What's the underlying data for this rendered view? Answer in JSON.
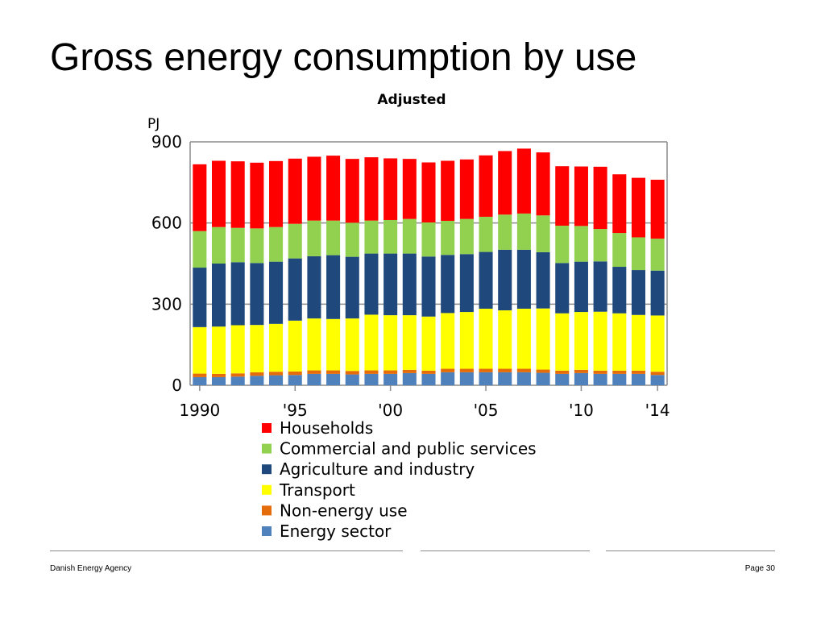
{
  "slide": {
    "title": "Gross energy consumption by use",
    "footer_left": "Danish Energy Agency",
    "footer_right": "Page 30"
  },
  "chart_data": {
    "type": "bar",
    "stacked": true,
    "subtitle": "Adjusted",
    "unit_label": "PJ",
    "ylim": [
      0,
      900
    ],
    "yticks": [
      "0",
      "300",
      "600",
      "900"
    ],
    "y_tick_values": [
      0,
      300,
      600,
      900
    ],
    "grid": true,
    "legend_position": "bottom",
    "categories": [
      1990,
      1991,
      1992,
      1993,
      1994,
      1995,
      1996,
      1997,
      1998,
      1999,
      2000,
      2001,
      2002,
      2003,
      2004,
      2005,
      2006,
      2007,
      2008,
      2009,
      2010,
      2011,
      2012,
      2013,
      2014
    ],
    "x_tick_labels": [
      {
        "year": 1990,
        "label": "1990"
      },
      {
        "year": 1995,
        "label": "'95"
      },
      {
        "year": 2000,
        "label": "'00"
      },
      {
        "year": 2005,
        "label": "'05"
      },
      {
        "year": 2010,
        "label": "'10"
      },
      {
        "year": 2014,
        "label": "'14"
      }
    ],
    "series": [
      {
        "name": "Energy sector",
        "color": "#4f81bd",
        "values": [
          30,
          30,
          32,
          35,
          37,
          38,
          42,
          42,
          40,
          42,
          42,
          45,
          42,
          48,
          48,
          48,
          48,
          48,
          46,
          42,
          45,
          42,
          42,
          42,
          38
        ]
      },
      {
        "name": "Non-energy use",
        "color": "#e46c0a",
        "values": [
          13,
          12,
          12,
          13,
          13,
          13,
          13,
          13,
          13,
          13,
          13,
          12,
          12,
          13,
          13,
          13,
          13,
          13,
          12,
          12,
          12,
          12,
          12,
          12,
          12
        ]
      },
      {
        "name": "Transport",
        "color": "#ffff00",
        "values": [
          172,
          175,
          178,
          175,
          177,
          188,
          192,
          190,
          194,
          206,
          204,
          202,
          200,
          206,
          210,
          222,
          216,
          222,
          226,
          212,
          214,
          218,
          212,
          206,
          208
        ]
      },
      {
        "name": "Agriculture and industry",
        "color": "#1f497d",
        "values": [
          220,
          233,
          233,
          229,
          230,
          230,
          230,
          236,
          228,
          226,
          228,
          228,
          222,
          215,
          214,
          210,
          224,
          218,
          208,
          186,
          186,
          186,
          172,
          166,
          166
        ]
      },
      {
        "name": "Commercial and public services",
        "color": "#92d050",
        "values": [
          135,
          135,
          127,
          128,
          128,
          128,
          132,
          128,
          126,
          122,
          124,
          128,
          126,
          126,
          130,
          130,
          130,
          134,
          136,
          138,
          132,
          120,
          125,
          121,
          118
        ]
      },
      {
        "name": "Households",
        "color": "#ff0000",
        "values": [
          247,
          245,
          246,
          243,
          244,
          241,
          236,
          240,
          236,
          234,
          228,
          222,
          222,
          222,
          220,
          227,
          235,
          240,
          233,
          220,
          220,
          230,
          217,
          220,
          218
        ]
      }
    ],
    "legend_order": [
      "Households",
      "Commercial and public services",
      "Agriculture and industry",
      "Transport",
      "Non-energy use",
      "Energy sector"
    ]
  }
}
